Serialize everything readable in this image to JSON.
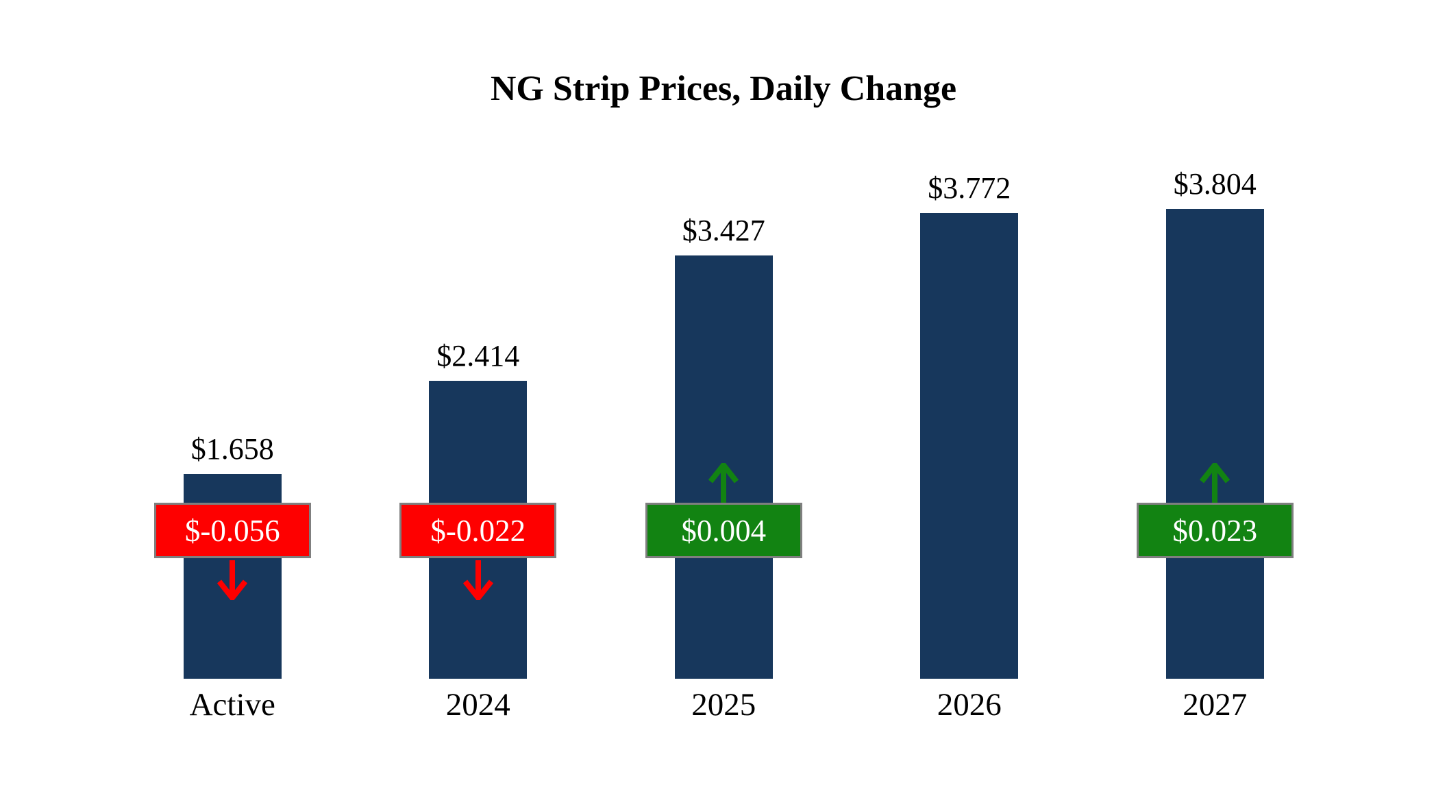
{
  "chart_data": {
    "type": "bar",
    "title": "NG Strip Prices, Daily Change",
    "categories": [
      "Active",
      "2024",
      "2025",
      "2026",
      "2027"
    ],
    "values": [
      1.658,
      2.414,
      3.427,
      3.772,
      3.804
    ],
    "value_labels": [
      "$1.658",
      "$2.414",
      "$3.427",
      "$3.772",
      "$3.804"
    ],
    "changes": [
      -0.056,
      -0.022,
      0.004,
      null,
      0.023
    ],
    "change_labels": [
      "$-0.056",
      "$-0.022",
      "$0.004",
      null,
      "$0.023"
    ],
    "ylim": [
      0,
      4.2
    ],
    "grid": false,
    "legend": "none",
    "xlabel": "",
    "ylabel": "",
    "colors": {
      "bar": "#17375c",
      "down_badge": "#fe0000",
      "up_badge": "#128312",
      "down_arrow": "#fe0000",
      "up_arrow": "#128312",
      "badge_border": "#7f7f7f",
      "text": "#000000",
      "badge_text": "#ffffff"
    }
  }
}
